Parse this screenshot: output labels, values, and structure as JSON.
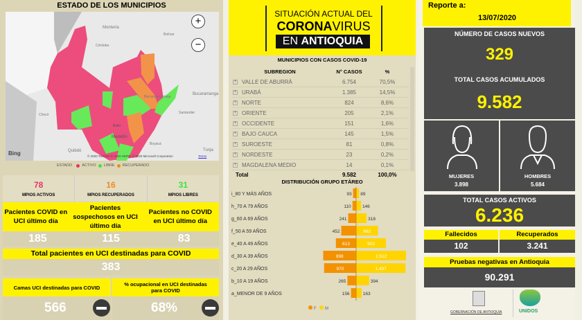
{
  "municipios": {
    "title": "ESTADO DE LOS MUNICIPIOS",
    "map": {
      "labels": [
        "Montería",
        "Córdoba",
        "Bolívar",
        "Bucaramanga",
        "Barrancabermeja",
        "Santander",
        "Chocó",
        "Bello",
        "Medellín",
        "Quibdó",
        "Boyacá",
        "Tunja"
      ],
      "zoom_in": "+",
      "zoom_out": "−",
      "bing": "Bing",
      "copyright": "© 2020 TomTom © 2020 HERE, © 2020 Microsoft Corporation",
      "terms": "Terms"
    },
    "legend": {
      "title": "ESTADO",
      "items": [
        {
          "label": "ACTIVO",
          "color": "#e8336a"
        },
        {
          "label": "LIBRE",
          "color": "#3ee33e"
        },
        {
          "label": "RECUPERADO",
          "color": "#f08a24"
        }
      ]
    },
    "stats": [
      {
        "value": "78",
        "label": "MPIOS ACTIVOS",
        "color": "#e8336a"
      },
      {
        "value": "16",
        "label": "MPIOS RECUPERADOS",
        "color": "#f08a24"
      },
      {
        "value": "31",
        "label": "MPIOS LIBRES",
        "color": "#3ee33e"
      }
    ]
  },
  "uci": {
    "cols": [
      {
        "label": "Pacientes COVID en UCI último día",
        "value": "185"
      },
      {
        "label": "Pacientes sospechosos en UCI último día",
        "value": "115"
      },
      {
        "label": "Pacientes no COVID en UCI último día",
        "value": "83"
      }
    ],
    "total_label": "Total pacientes en UCI destinadas para COVID",
    "total_value": "383",
    "camas_label": "Camas UCI destinadas para COVID",
    "camas_value": "566",
    "ocup_label": "% ocupacional en UCI destinadas para COVID",
    "ocup_value": "68%"
  },
  "header": {
    "line1": "SITUACIÓN ACTUAL DEL",
    "line2a": "CORONA",
    "line2b": "VIRUS",
    "line3a": "EN ",
    "line3b": "ANTIOQUIA"
  },
  "table": {
    "title": "MUNICIPIOS CON CASOS COVID-19",
    "headers": [
      "SUBREGION",
      "N° CASOS",
      "%"
    ],
    "rows": [
      [
        "VALLE DE ABURRÁ",
        "6.754",
        "70,5%"
      ],
      [
        "URABÁ",
        "1.385",
        "14,5%"
      ],
      [
        "NORTE",
        "824",
        "8,6%"
      ],
      [
        "ORIENTE",
        "205",
        "2,1%"
      ],
      [
        "OCCIDENTE",
        "151",
        "1,6%"
      ],
      [
        "BAJO CAUCA",
        "145",
        "1,5%"
      ],
      [
        "SUROESTE",
        "81",
        "0,8%"
      ],
      [
        "NORDESTE",
        "23",
        "0,2%"
      ],
      [
        "MAGDALENA MEDIO",
        "14",
        "0,1%"
      ]
    ],
    "total": [
      "Total",
      "9.582",
      "100,0%"
    ]
  },
  "chart_data": {
    "type": "bar",
    "title": "DISTRIBUCIÓN GRUPO ETÁREO",
    "orientation": "horizontal-pyramid",
    "categories": [
      "i_80 Y MÁS AÑOS",
      "h_70 A 79 AÑOS",
      "g_60 A 69 AÑOS",
      "f_50 A 59 AÑOS",
      "e_40 A 49 AÑOS",
      "d_30 A 39 AÑOS",
      "c_20 A 29 AÑOS",
      "b_10 A 19 AÑOS",
      "a_MENOR DE 9 AÑOS"
    ],
    "series": [
      {
        "name": "F",
        "color": "#f39200",
        "values": [
          93,
          110,
          241,
          452,
          613,
          998,
          970,
          265,
          156
        ],
        "labels": [
          "93",
          "110",
          "241",
          "452",
          "613",
          "998",
          "970",
          "265",
          "156"
        ]
      },
      {
        "name": "M",
        "color": "#ffd400",
        "values": [
          89,
          146,
          318,
          662,
          903,
          1512,
          1497,
          394,
          163
        ],
        "labels": [
          "89",
          "146",
          "318",
          "662",
          "903",
          "1,512",
          "1,497",
          "394",
          "163"
        ]
      }
    ],
    "legend": "bottom"
  },
  "report": {
    "label": "Reporte a:",
    "date": "13/07/2020",
    "new_label": "NÚMERO DE CASOS NUEVOS",
    "new_value": "329",
    "acc_label": "TOTAL CASOS ACUMULADOS",
    "acc_value": "9.582",
    "women_label": "MUJERES",
    "women_value": "3.898",
    "men_label": "HOMBRES",
    "men_value": "5.684",
    "active_label": "TOTAL CASOS ACTIVOS",
    "active_value": "6.236",
    "dead_label": "Fallecidos",
    "dead_value": "102",
    "rec_label": "Recuperados",
    "rec_value": "3.241",
    "neg_label": "Pruebas negativas en Antioquia",
    "neg_value": "90.291",
    "logo1": "GOBERNACIÓN DE ANTIOQUIA",
    "logo2": "UNIDOS"
  }
}
